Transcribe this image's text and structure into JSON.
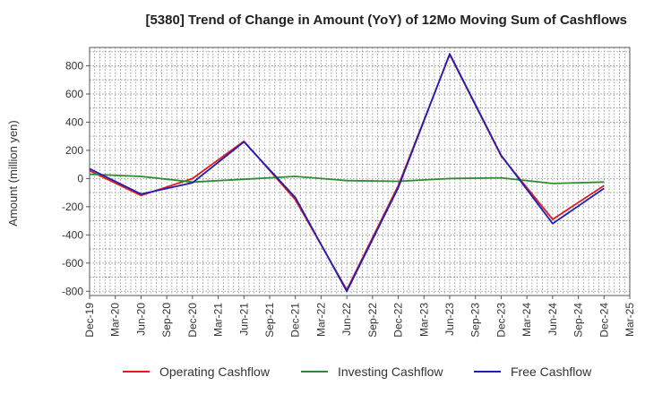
{
  "chart_data": {
    "type": "line",
    "title": "[5380]  Trend of Change in Amount (YoY) of 12Mo Moving Sum of Cashflows",
    "ylabel": "Amount (million yen)",
    "xlabel": "",
    "ylim": [
      -830,
      930
    ],
    "yticks": [
      800,
      600,
      400,
      200,
      0,
      -200,
      -400,
      -600,
      -800
    ],
    "ytick_labels": [
      "800",
      "600",
      "400",
      "200",
      "0",
      "-200",
      "-400",
      "-600",
      "-800"
    ],
    "categories": [
      "Dec-19",
      "Mar-20",
      "Jun-20",
      "Sep-20",
      "Dec-20",
      "Mar-21",
      "Jun-21",
      "Sep-21",
      "Dec-21",
      "Mar-22",
      "Jun-22",
      "Sep-22",
      "Dec-22",
      "Mar-23",
      "Jun-23",
      "Sep-23",
      "Dec-23",
      "Mar-24",
      "Jun-24",
      "Sep-24",
      "Dec-24",
      "Mar-25"
    ],
    "grid": true,
    "legend_position": "bottom",
    "series": [
      {
        "name": "Operating Cashflow",
        "color": "#e41a1c",
        "values": [
          55,
          null,
          -120,
          null,
          0,
          null,
          265,
          null,
          -150,
          null,
          -790,
          null,
          -50,
          null,
          880,
          null,
          160,
          null,
          -290,
          null,
          -50,
          null
        ]
      },
      {
        "name": "Investing Cashflow",
        "color": "#2e8b2e",
        "values": [
          30,
          null,
          15,
          null,
          -25,
          null,
          -5,
          null,
          15,
          null,
          -15,
          null,
          -20,
          null,
          0,
          null,
          5,
          null,
          -35,
          null,
          -25,
          null
        ]
      },
      {
        "name": "Free Cashflow",
        "color": "#1f1fb4",
        "values": [
          70,
          null,
          -110,
          null,
          -30,
          null,
          260,
          null,
          -135,
          null,
          -800,
          null,
          -65,
          null,
          885,
          null,
          165,
          null,
          -320,
          null,
          -70,
          null
        ]
      }
    ]
  }
}
